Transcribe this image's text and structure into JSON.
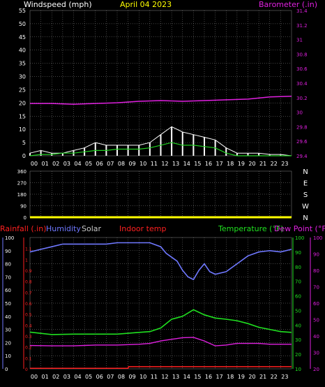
{
  "title": "April 04 2023",
  "hours": [
    "00",
    "01",
    "02",
    "03",
    "04",
    "05",
    "06",
    "07",
    "08",
    "09",
    "10",
    "11",
    "12",
    "13",
    "14",
    "15",
    "16",
    "17",
    "18",
    "19",
    "20",
    "21",
    "22",
    "23"
  ],
  "colors": {
    "background": "#000000",
    "grid": "#8a8a8a",
    "wind": "#ffffff",
    "gust": "#21d021",
    "barometer": "#e020e0",
    "wind_dir": "#ffff00",
    "humidity": "#6f78ff",
    "temperature": "#20e020",
    "dew_point": "#e020e0",
    "rainfall": "#ff2020",
    "solar": "#c8c8c8",
    "indoor_temp": "#ff2020"
  },
  "chart_data": [
    {
      "type": "line",
      "labels": {
        "left": "Windspeed (mph)",
        "right": "Barometer (.in)"
      },
      "left_axis": {
        "min": 0,
        "max": 55,
        "ticks": [
          0,
          5,
          10,
          15,
          20,
          25,
          30,
          35,
          40,
          45,
          50,
          55
        ]
      },
      "right_axis": {
        "min": 29.4,
        "max": 31.4,
        "ticks": [
          "29.4",
          "29.6",
          "29.8",
          "30",
          "30.2",
          "30.4",
          "30.6",
          "30.8",
          "31",
          "31.2",
          "31.4"
        ]
      },
      "series": [
        {
          "name": "Windspeed",
          "axis": "left",
          "color": "wind",
          "x": [
            0,
            1,
            2,
            3,
            4,
            5,
            6,
            7,
            8,
            9,
            10,
            11,
            12,
            13,
            14,
            15,
            16,
            17,
            18,
            19,
            20,
            21,
            22,
            23,
            24
          ],
          "y": [
            1,
            2,
            1,
            1,
            2,
            3,
            5,
            4,
            4,
            4,
            4,
            5,
            8,
            11,
            9,
            8,
            7,
            6,
            3,
            1,
            1,
            1,
            0.5,
            0.5,
            0
          ]
        },
        {
          "name": "Gust",
          "axis": "left",
          "color": "gust",
          "x": [
            0,
            1,
            2,
            3,
            4,
            5,
            6,
            7,
            8,
            9,
            10,
            11,
            12,
            13,
            14,
            15,
            16,
            17,
            18,
            19,
            20,
            21,
            22,
            23,
            24
          ],
          "y": [
            0,
            0.5,
            0.5,
            1,
            1,
            1.5,
            2,
            2,
            2.5,
            2.5,
            2.5,
            3,
            4,
            5,
            4,
            4,
            3.5,
            3,
            1,
            0,
            0,
            0,
            0,
            0,
            0
          ]
        },
        {
          "name": "Barometer",
          "axis": "right",
          "color": "barometer",
          "x": [
            0,
            2,
            4,
            6,
            8,
            10,
            12,
            14,
            16,
            18,
            20,
            22,
            24
          ],
          "y": [
            30.12,
            30.12,
            30.11,
            30.12,
            30.13,
            30.15,
            30.16,
            30.15,
            30.16,
            30.17,
            30.18,
            30.21,
            30.22
          ]
        }
      ]
    },
    {
      "type": "scatter",
      "left_axis": {
        "min": 0,
        "max": 360,
        "ticks": [
          0,
          90,
          180,
          270,
          360
        ]
      },
      "right_axis_labels": [
        "N",
        "W",
        "S",
        "E",
        "N"
      ],
      "series": [
        {
          "name": "Wind direction",
          "color": "wind_dir",
          "x": [
            0,
            2,
            4,
            6,
            8,
            10,
            12,
            14,
            16,
            18,
            20,
            22,
            24
          ],
          "y": [
            0,
            0,
            0,
            0,
            0,
            0,
            0,
            0,
            0,
            0,
            0,
            0,
            0
          ]
        }
      ]
    },
    {
      "type": "line",
      "labels": {
        "rainfall": "Rainfall (.in)",
        "humidity": "Humidity",
        "solar": "Solar",
        "indoor": "Indoor temp",
        "temperature": "Temperature (°F)",
        "dewpoint": "Dew Point (°F)"
      },
      "axis_humidity": {
        "min": 0,
        "max": 100,
        "ticks": [
          0,
          10,
          20,
          30,
          40,
          50,
          60,
          70,
          80,
          90,
          100
        ]
      },
      "axis_rain": {
        "min": 0,
        "max": 1.2,
        "ticks": [
          "0",
          "0.1",
          "0.2",
          "0.3",
          "0.4",
          "0.5",
          "0.6",
          "0.7",
          "0.8",
          "0.9",
          "1",
          "1.1"
        ]
      },
      "axis_temperature": {
        "min": 10,
        "max": 100,
        "ticks": [
          10,
          20,
          30,
          40,
          50,
          60,
          70,
          80,
          90,
          100
        ]
      },
      "axis_dewpoint": {
        "min": 20,
        "max": 100,
        "ticks": [
          20,
          30,
          40,
          50,
          60,
          70,
          80,
          90,
          100
        ]
      },
      "series": [
        {
          "name": "Humidity",
          "axis": "humidity",
          "color": "humidity",
          "x": [
            0,
            1,
            2,
            3,
            4,
            5,
            6,
            7,
            8,
            9,
            10,
            11,
            12,
            12.5,
            13,
            13.5,
            14,
            14.5,
            15,
            15.5,
            16,
            16.5,
            17,
            18,
            19,
            20,
            21,
            22,
            23,
            24
          ],
          "y": [
            89,
            91,
            93,
            95,
            95,
            95,
            95,
            95,
            96,
            96,
            96,
            96,
            93,
            88,
            85,
            82,
            75,
            70,
            68,
            75,
            80,
            74,
            72,
            74,
            80,
            86,
            89,
            90,
            89,
            91
          ]
        },
        {
          "name": "Temperature",
          "axis": "temperature",
          "color": "temperature",
          "x": [
            0,
            2,
            4,
            6,
            8,
            10,
            11,
            12,
            13,
            14,
            15,
            16,
            17,
            18,
            19,
            20,
            21,
            22,
            23,
            24
          ],
          "y": [
            35.2,
            33.5,
            33.8,
            33.8,
            33.8,
            35,
            35.5,
            38,
            44,
            46,
            50.5,
            47,
            44.8,
            44,
            43,
            41,
            38.5,
            37,
            35.5,
            35
          ]
        },
        {
          "name": "Dew Point",
          "axis": "dewpoint",
          "color": "dew_point",
          "x": [
            0,
            2,
            4,
            6,
            8,
            10,
            11,
            12,
            13,
            14,
            15,
            16,
            17,
            18,
            19,
            20,
            21,
            22,
            23,
            24
          ],
          "y": [
            34.2,
            34,
            34,
            34.5,
            34.5,
            35,
            35.5,
            37,
            38,
            39,
            39.2,
            37,
            34,
            34.5,
            35.5,
            35.5,
            35.5,
            35,
            35,
            35
          ]
        },
        {
          "name": "Rainfall",
          "axis": "rain",
          "color": "rainfall",
          "x": [
            0,
            9,
            9.05,
            24
          ],
          "y": [
            0.005,
            0.005,
            0.02,
            0.02
          ]
        },
        {
          "name": "Indoor temp",
          "axis": "humidity",
          "color": "indoor_temp",
          "x": [
            0,
            24
          ],
          "y": [
            -0.3,
            -0.3
          ]
        }
      ]
    }
  ]
}
